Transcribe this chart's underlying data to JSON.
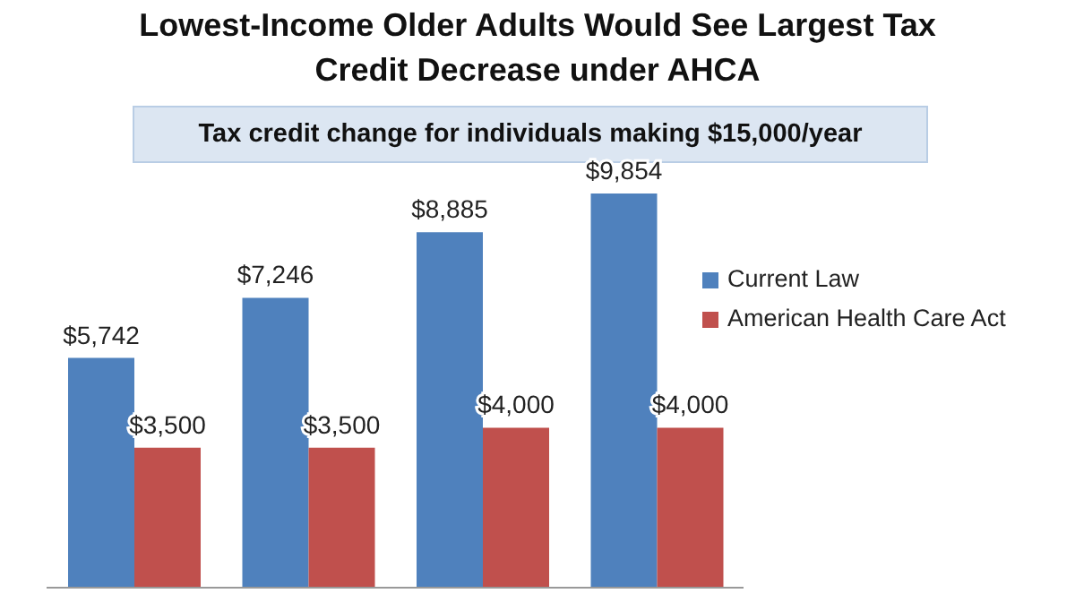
{
  "chart_data": {
    "type": "bar",
    "title": "Lowest-Income Older Adults Would See Largest Tax Credit Decrease under AHCA",
    "subtitle": "Tax credit change for individuals making $15,000/year",
    "categories": [
      null,
      null,
      null,
      null
    ],
    "series": [
      {
        "name": "Current Law",
        "color": "#4f81bd",
        "values": [
          5742,
          7246,
          8885,
          9854
        ],
        "value_labels": [
          "$5,742",
          "$7,246",
          "$8,885",
          "$9,854"
        ]
      },
      {
        "name": "American Health Care Act",
        "color": "#c0504d",
        "values": [
          3500,
          3500,
          4000,
          4000
        ],
        "value_labels": [
          "$3,500",
          "$3,500",
          "$4,000",
          "$4,000"
        ]
      }
    ],
    "legend": "right",
    "grid": false
  }
}
